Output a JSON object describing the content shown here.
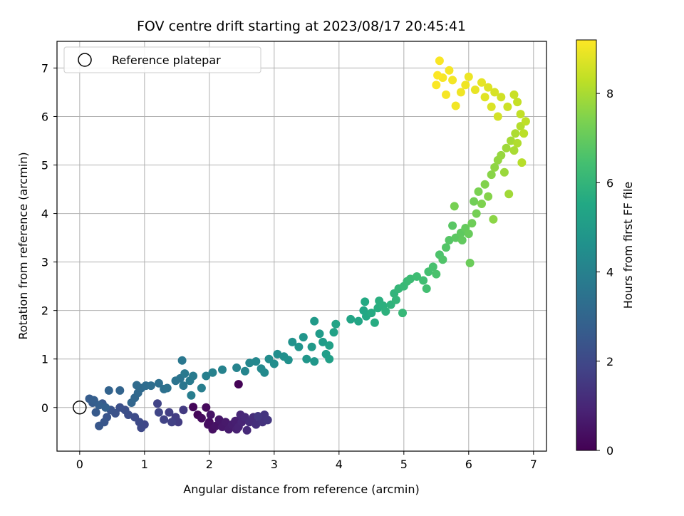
{
  "chart_data": {
    "type": "scatter",
    "title": "FOV centre drift starting at 2023/08/17 20:45:41",
    "xlabel": "Angular distance from reference (arcmin)",
    "ylabel": "Rotation from reference (arcmin)",
    "xlim": [
      -0.35,
      7.2
    ],
    "ylim": [
      -0.9,
      7.55
    ],
    "xticks": [
      0,
      1,
      2,
      3,
      4,
      5,
      6,
      7
    ],
    "yticks": [
      0,
      1,
      2,
      3,
      4,
      5,
      6,
      7
    ],
    "grid": true,
    "legend": {
      "placement": "top-left",
      "entries": [
        "Reference platepar"
      ]
    },
    "reference_point": {
      "x": 0,
      "y": 0,
      "label": "Reference platepar"
    },
    "colorbar": {
      "label": "Hours from first FF file",
      "min": 0,
      "max": 9.2,
      "ticks": [
        0,
        2,
        4,
        6,
        8
      ],
      "colormap": "viridis"
    },
    "points": [
      [
        2.45,
        0.48,
        0.05
      ],
      [
        1.75,
        0.01,
        0.1
      ],
      [
        1.82,
        -0.15,
        0.15
      ],
      [
        1.95,
        0.0,
        0.2
      ],
      [
        1.88,
        -0.22,
        0.25
      ],
      [
        2.0,
        -0.3,
        0.3
      ],
      [
        1.98,
        -0.35,
        0.35
      ],
      [
        2.05,
        -0.45,
        0.4
      ],
      [
        2.1,
        -0.38,
        0.45
      ],
      [
        2.02,
        -0.15,
        0.5
      ],
      [
        2.15,
        -0.25,
        0.55
      ],
      [
        2.2,
        -0.4,
        0.6
      ],
      [
        2.25,
        -0.3,
        0.65
      ],
      [
        2.3,
        -0.45,
        0.7
      ],
      [
        2.35,
        -0.35,
        0.75
      ],
      [
        2.4,
        -0.28,
        0.8
      ],
      [
        2.42,
        -0.45,
        0.85
      ],
      [
        2.45,
        -0.4,
        0.9
      ],
      [
        2.5,
        -0.3,
        0.95
      ],
      [
        2.48,
        -0.15,
        1.0
      ],
      [
        2.55,
        -0.2,
        1.05
      ],
      [
        2.58,
        -0.47,
        1.1
      ],
      [
        2.62,
        -0.3,
        1.15
      ],
      [
        2.68,
        -0.2,
        1.2
      ],
      [
        2.72,
        -0.35,
        1.25
      ],
      [
        2.78,
        -0.2,
        1.3
      ],
      [
        2.82,
        -0.3,
        1.35
      ],
      [
        2.85,
        -0.15,
        1.4
      ],
      [
        2.9,
        -0.26,
        1.45
      ],
      [
        2.75,
        -0.18,
        1.5
      ],
      [
        1.6,
        -0.05,
        1.55
      ],
      [
        1.52,
        -0.3,
        1.6
      ],
      [
        1.48,
        -0.2,
        1.65
      ],
      [
        1.38,
        -0.1,
        1.7
      ],
      [
        1.42,
        -0.3,
        1.75
      ],
      [
        1.3,
        -0.25,
        1.8
      ],
      [
        1.2,
        0.08,
        1.85
      ],
      [
        1.22,
        -0.1,
        1.9
      ],
      [
        1.0,
        -0.35,
        1.95
      ],
      [
        0.95,
        -0.42,
        2.0
      ],
      [
        0.92,
        -0.3,
        2.05
      ],
      [
        0.85,
        -0.2,
        2.1
      ],
      [
        0.75,
        -0.15,
        2.15
      ],
      [
        0.7,
        -0.05,
        2.2
      ],
      [
        0.62,
        0.0,
        2.25
      ],
      [
        0.55,
        -0.12,
        2.3
      ],
      [
        0.48,
        -0.05,
        2.35
      ],
      [
        0.42,
        -0.2,
        2.4
      ],
      [
        0.38,
        -0.3,
        2.45
      ],
      [
        0.3,
        -0.38,
        2.5
      ],
      [
        0.35,
        0.08,
        2.55
      ],
      [
        0.25,
        -0.1,
        2.6
      ],
      [
        0.2,
        0.1,
        2.65
      ],
      [
        0.15,
        0.18,
        2.7
      ],
      [
        0.22,
        0.15,
        2.75
      ],
      [
        0.3,
        0.05,
        2.8
      ],
      [
        0.4,
        0.0,
        2.85
      ],
      [
        0.45,
        0.35,
        2.9
      ],
      [
        0.62,
        0.35,
        2.95
      ],
      [
        0.8,
        0.1,
        3.0
      ],
      [
        0.85,
        0.2,
        3.05
      ],
      [
        0.9,
        0.3,
        3.1
      ],
      [
        0.95,
        0.4,
        3.15
      ],
      [
        0.88,
        0.46,
        3.2
      ],
      [
        1.02,
        0.45,
        3.25
      ],
      [
        1.1,
        0.45,
        3.3
      ],
      [
        1.22,
        0.5,
        3.35
      ],
      [
        1.3,
        0.38,
        3.4
      ],
      [
        1.35,
        0.4,
        3.45
      ],
      [
        1.48,
        0.55,
        3.5
      ],
      [
        1.55,
        0.6,
        3.55
      ],
      [
        1.6,
        0.45,
        3.6
      ],
      [
        1.58,
        0.97,
        3.65
      ],
      [
        1.62,
        0.7,
        3.7
      ],
      [
        1.7,
        0.55,
        3.75
      ],
      [
        1.75,
        0.65,
        3.8
      ],
      [
        1.72,
        0.25,
        3.85
      ],
      [
        1.88,
        0.4,
        3.9
      ],
      [
        1.95,
        0.65,
        3.95
      ],
      [
        2.05,
        0.72,
        4.0
      ],
      [
        2.2,
        0.78,
        4.05
      ],
      [
        2.42,
        0.82,
        4.1
      ],
      [
        2.55,
        0.75,
        4.15
      ],
      [
        2.62,
        0.92,
        4.2
      ],
      [
        2.72,
        0.95,
        4.25
      ],
      [
        2.8,
        0.8,
        4.3
      ],
      [
        2.85,
        0.72,
        4.35
      ],
      [
        2.92,
        1.0,
        4.4
      ],
      [
        3.0,
        0.9,
        4.45
      ],
      [
        3.05,
        1.1,
        4.5
      ],
      [
        3.15,
        1.05,
        4.55
      ],
      [
        3.22,
        0.98,
        4.6
      ],
      [
        3.28,
        1.35,
        4.65
      ],
      [
        3.38,
        1.25,
        4.7
      ],
      [
        3.45,
        1.45,
        4.75
      ],
      [
        3.5,
        1.0,
        4.8
      ],
      [
        3.62,
        0.95,
        4.85
      ],
      [
        3.58,
        1.25,
        4.9
      ],
      [
        3.62,
        1.78,
        4.95
      ],
      [
        3.7,
        1.52,
        5.0
      ],
      [
        3.75,
        1.35,
        5.05
      ],
      [
        3.8,
        1.1,
        5.1
      ],
      [
        3.85,
        1.0,
        5.15
      ],
      [
        3.85,
        1.28,
        5.2
      ],
      [
        3.92,
        1.55,
        5.25
      ],
      [
        3.95,
        1.72,
        5.3
      ],
      [
        4.18,
        1.82,
        5.35
      ],
      [
        4.3,
        1.78,
        5.4
      ],
      [
        4.38,
        2.0,
        5.45
      ],
      [
        4.42,
        1.88,
        5.5
      ],
      [
        4.4,
        2.18,
        5.55
      ],
      [
        4.5,
        1.95,
        5.6
      ],
      [
        4.55,
        1.75,
        5.65
      ],
      [
        4.6,
        2.05,
        5.7
      ],
      [
        4.62,
        2.2,
        5.75
      ],
      [
        4.68,
        2.1,
        5.8
      ],
      [
        4.72,
        1.98,
        5.85
      ],
      [
        4.8,
        2.12,
        5.9
      ],
      [
        4.85,
        2.35,
        5.95
      ],
      [
        4.88,
        2.22,
        6.0
      ],
      [
        4.92,
        2.45,
        6.05
      ],
      [
        4.98,
        1.95,
        6.1
      ],
      [
        5.0,
        2.5,
        6.15
      ],
      [
        5.05,
        2.6,
        6.2
      ],
      [
        5.1,
        2.65,
        6.25
      ],
      [
        5.2,
        2.7,
        6.3
      ],
      [
        5.3,
        2.62,
        6.35
      ],
      [
        5.35,
        2.45,
        6.4
      ],
      [
        5.38,
        2.8,
        6.45
      ],
      [
        5.45,
        2.9,
        6.5
      ],
      [
        5.5,
        2.75,
        6.55
      ],
      [
        5.55,
        3.15,
        6.6
      ],
      [
        5.6,
        3.05,
        6.65
      ],
      [
        5.65,
        3.3,
        6.7
      ],
      [
        5.7,
        3.45,
        6.75
      ],
      [
        5.75,
        3.75,
        6.8
      ],
      [
        5.8,
        3.5,
        6.85
      ],
      [
        5.88,
        3.6,
        6.9
      ],
      [
        5.9,
        3.45,
        6.95
      ],
      [
        5.95,
        3.7,
        7.0
      ],
      [
        6.0,
        3.58,
        7.05
      ],
      [
        6.02,
        2.98,
        7.1
      ],
      [
        6.05,
        3.8,
        7.15
      ],
      [
        6.08,
        4.25,
        7.2
      ],
      [
        6.12,
        4.0,
        7.25
      ],
      [
        5.78,
        4.15,
        7.3
      ],
      [
        6.15,
        4.45,
        7.35
      ],
      [
        6.2,
        4.2,
        7.4
      ],
      [
        6.25,
        4.6,
        7.45
      ],
      [
        6.3,
        4.35,
        7.5
      ],
      [
        6.35,
        4.8,
        7.55
      ],
      [
        6.38,
        3.88,
        7.6
      ],
      [
        6.4,
        4.95,
        7.65
      ],
      [
        6.45,
        5.1,
        7.7
      ],
      [
        6.5,
        5.2,
        7.75
      ],
      [
        6.55,
        4.85,
        7.8
      ],
      [
        6.58,
        5.35,
        7.85
      ],
      [
        6.62,
        4.4,
        7.9
      ],
      [
        6.65,
        5.5,
        7.95
      ],
      [
        6.7,
        5.3,
        8.0
      ],
      [
        6.72,
        5.65,
        8.05
      ],
      [
        6.75,
        5.45,
        8.1
      ],
      [
        6.8,
        5.8,
        8.15
      ],
      [
        6.82,
        5.05,
        8.2
      ],
      [
        6.85,
        5.65,
        8.25
      ],
      [
        6.88,
        5.9,
        8.3
      ],
      [
        6.8,
        6.05,
        8.35
      ],
      [
        6.75,
        6.3,
        8.4
      ],
      [
        6.7,
        6.45,
        8.45
      ],
      [
        6.6,
        6.2,
        8.5
      ],
      [
        6.5,
        6.4,
        8.55
      ],
      [
        6.45,
        6.0,
        8.6
      ],
      [
        6.4,
        6.5,
        8.65
      ],
      [
        6.35,
        6.2,
        8.7
      ],
      [
        6.3,
        6.6,
        8.75
      ],
      [
        6.25,
        6.4,
        8.8
      ],
      [
        6.2,
        6.7,
        8.85
      ],
      [
        6.1,
        6.55,
        8.9
      ],
      [
        6.0,
        6.82,
        8.95
      ],
      [
        5.95,
        6.65,
        9.0
      ],
      [
        5.88,
        6.5,
        9.02
      ],
      [
        5.8,
        6.22,
        9.04
      ],
      [
        5.75,
        6.75,
        9.06
      ],
      [
        5.7,
        6.95,
        9.08
      ],
      [
        5.65,
        6.45,
        9.1
      ],
      [
        5.6,
        6.8,
        9.12
      ],
      [
        5.55,
        7.15,
        9.14
      ],
      [
        5.5,
        6.65,
        9.16
      ],
      [
        5.52,
        6.85,
        9.18
      ]
    ]
  }
}
